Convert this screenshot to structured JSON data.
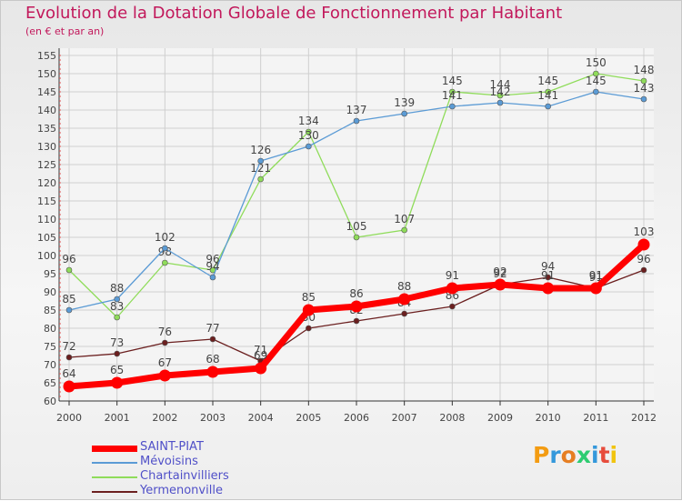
{
  "header": {
    "title": "Evolution de la Dotation Globale de Fonctionnement par Habitant",
    "subtitle": "(en € et par an)"
  },
  "brand": {
    "text": "Proxiti",
    "colors": [
      "#f39c12",
      "#3498db",
      "#e67e22",
      "#2ecc71",
      "#3498db",
      "#e74c3c",
      "#f1c40f"
    ]
  },
  "chart_data": {
    "type": "line",
    "title": "Evolution de la Dotation Globale de Fonctionnement par Habitant",
    "subtitle": "(en € et par an)",
    "xlabel": "",
    "ylabel": "",
    "x": [
      "2000",
      "2001",
      "2002",
      "2003",
      "2004",
      "2005",
      "2006",
      "2007",
      "2008",
      "2009",
      "2010",
      "2011",
      "2012"
    ],
    "ylim": [
      60,
      155
    ],
    "yticks": [
      60,
      65,
      70,
      75,
      80,
      85,
      90,
      95,
      100,
      105,
      110,
      115,
      120,
      125,
      130,
      135,
      140,
      145,
      150,
      155
    ],
    "grid": true,
    "legend_position": "bottom-left",
    "series": [
      {
        "name": "SAINT-PIAT",
        "color": "#ff0000",
        "values": [
          64,
          65,
          67,
          68,
          69,
          85,
          86,
          88,
          91,
          92,
          91,
          91,
          103
        ]
      },
      {
        "name": "Mévoisins",
        "color": "#5b9bd5",
        "values": [
          85,
          88,
          102,
          94,
          126,
          130,
          137,
          139,
          141,
          142,
          141,
          145,
          143
        ]
      },
      {
        "name": "Chartainvilliers",
        "color": "#8fdc5a",
        "values": [
          96,
          83,
          98,
          96,
          121,
          134,
          105,
          107,
          145,
          144,
          145,
          150,
          148
        ]
      },
      {
        "name": "Yermenonville",
        "color": "#6b1f1f",
        "values": [
          72,
          73,
          76,
          77,
          71,
          80,
          82,
          84,
          86,
          92,
          94,
          91,
          96
        ]
      }
    ]
  }
}
